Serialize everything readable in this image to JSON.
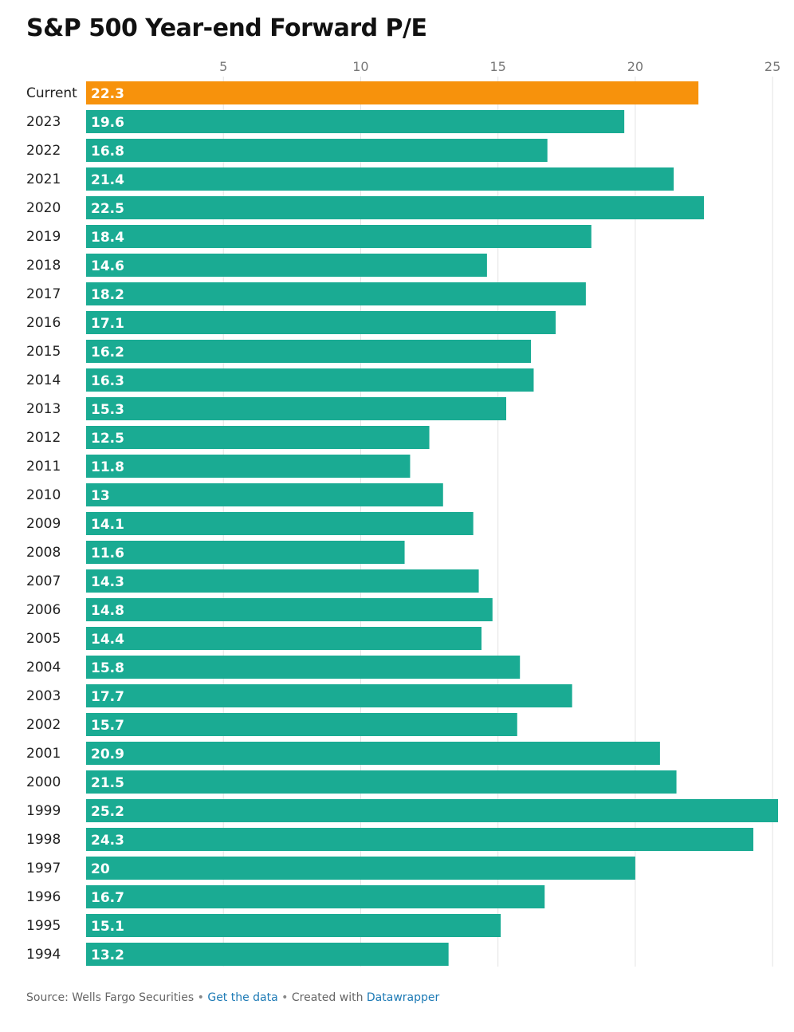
{
  "chart_data": {
    "type": "bar",
    "orientation": "horizontal",
    "title": "S&P 500 Year-end Forward P/E",
    "xlabel": "",
    "ylabel": "",
    "xlim": [
      0,
      25.2
    ],
    "ticks": [
      5,
      10,
      15,
      20,
      25
    ],
    "categories": [
      "Current",
      "2023",
      "2022",
      "2021",
      "2020",
      "2019",
      "2018",
      "2017",
      "2016",
      "2015",
      "2014",
      "2013",
      "2012",
      "2011",
      "2010",
      "2009",
      "2008",
      "2007",
      "2006",
      "2005",
      "2004",
      "2003",
      "2002",
      "2001",
      "2000",
      "1999",
      "1998",
      "1997",
      "1996",
      "1995",
      "1994"
    ],
    "values": [
      22.3,
      19.6,
      16.8,
      21.4,
      22.5,
      18.4,
      14.6,
      18.2,
      17.1,
      16.2,
      16.3,
      15.3,
      12.5,
      11.8,
      13,
      14.1,
      11.6,
      14.3,
      14.8,
      14.4,
      15.8,
      17.7,
      15.7,
      20.9,
      21.5,
      25.2,
      24.3,
      20,
      16.7,
      15.1,
      13.2
    ],
    "highlight_category": "Current",
    "colors": {
      "highlight": "#f7920c",
      "default": "#1aab93"
    },
    "grid": true
  },
  "footer": {
    "source": "Source: Wells Fargo Securities",
    "separator": "•",
    "get_data": "Get the data",
    "created": "Created with",
    "tool": "Datawrapper"
  }
}
